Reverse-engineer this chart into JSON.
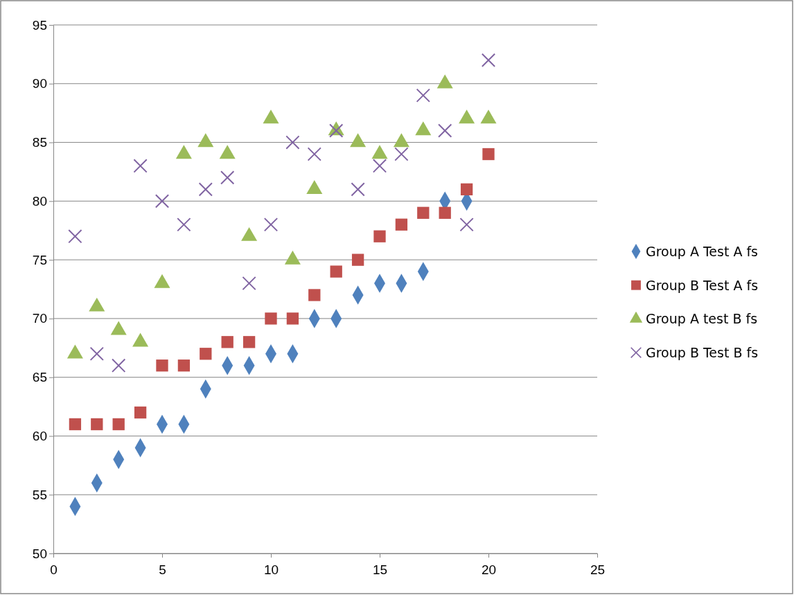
{
  "chart_data": {
    "type": "scatter",
    "x": [
      1,
      2,
      3,
      4,
      5,
      6,
      7,
      8,
      9,
      10,
      11,
      12,
      13,
      14,
      15,
      16,
      17,
      18,
      19,
      20
    ],
    "series": [
      {
        "name": "Group A Test A fs",
        "color": "#4f81bd",
        "marker": "diamond",
        "values": [
          54,
          56,
          58,
          59,
          61,
          61,
          64,
          66,
          66,
          67,
          67,
          70,
          70,
          72,
          73,
          73,
          74,
          80,
          80,
          null
        ]
      },
      {
        "name": "Group B Test A fs",
        "color": "#c0504d",
        "marker": "square",
        "values": [
          61,
          61,
          61,
          62,
          66,
          66,
          67,
          68,
          68,
          70,
          70,
          72,
          74,
          75,
          77,
          78,
          79,
          79,
          81,
          84
        ]
      },
      {
        "name": "Group A test B fs",
        "color": "#9bbb59",
        "marker": "triangle",
        "values": [
          67,
          71,
          69,
          68,
          73,
          84,
          85,
          84,
          77,
          87,
          75,
          81,
          86,
          85,
          84,
          85,
          86,
          90,
          87,
          87
        ]
      },
      {
        "name": "Group B Test B fs",
        "color": "#8064a2",
        "marker": "cross",
        "values": [
          77,
          67,
          66,
          83,
          80,
          78,
          81,
          82,
          73,
          78,
          85,
          84,
          86,
          81,
          83,
          84,
          89,
          86,
          78,
          92
        ]
      }
    ],
    "xlim": [
      0,
      25
    ],
    "xticks": [
      0,
      5,
      10,
      15,
      20,
      25
    ],
    "ylim": [
      50,
      95
    ],
    "yticks": [
      50,
      55,
      60,
      65,
      70,
      75,
      80,
      85,
      90,
      95
    ],
    "grid": "y",
    "legend": "right"
  }
}
